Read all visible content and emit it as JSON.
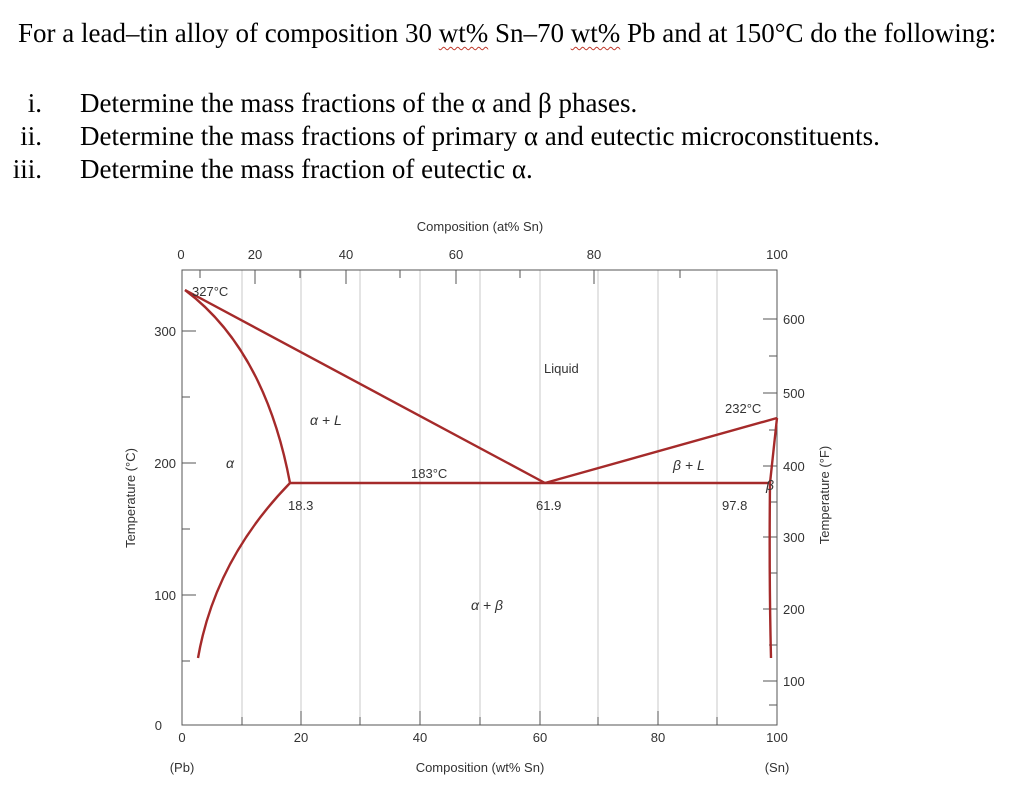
{
  "question": {
    "title_parts": [
      {
        "text": "For a lead–tin alloy of composition 30 ",
        "wavy": false
      },
      {
        "text": "wt%",
        "wavy": true
      },
      {
        "text": " Sn–70 ",
        "wavy": false
      },
      {
        "text": "wt%",
        "wavy": true
      },
      {
        "text": " Pb and at 150°C do the following:",
        "wavy": false
      }
    ],
    "items": [
      {
        "num": "i.",
        "text": "Determine the mass fractions of the α and β phases."
      },
      {
        "num": "ii.",
        "text": "Determine the mass fractions of primary α and eutectic microconstituents."
      },
      {
        "num": "iii.",
        "text": "Determine the mass fraction of eutectic α."
      }
    ]
  },
  "diagram": {
    "top_axis_label": "Composition (at% Sn)",
    "bottom_axis_label": "Composition (wt% Sn)",
    "left_axis_label": "Temperature (°C)",
    "right_axis_label": "Temperature (°F)",
    "pb_label": "(Pb)",
    "sn_label": "(Sn)",
    "top_ticks": [
      "0",
      "20",
      "40",
      "60",
      "80",
      "100"
    ],
    "bottom_ticks": [
      "0",
      "20",
      "40",
      "60",
      "80",
      "100"
    ],
    "left_ticks": [
      "0",
      "100",
      "200",
      "300"
    ],
    "right_ticks": [
      "100",
      "200",
      "300",
      "400",
      "500",
      "600"
    ],
    "annotations": {
      "pb_melt": "327°C",
      "sn_melt": "232°C",
      "eutectic_temp": "183°C",
      "alpha_limit": "18.3",
      "eutectic_comp": "61.9",
      "beta_limit": "97.8",
      "liquid": "Liquid",
      "alpha_plus_L": "α + L",
      "beta_plus_L": "β + L",
      "alpha": "α",
      "beta": "β",
      "alpha_plus_beta": "α + β"
    },
    "colors": {
      "phase_lines": "#a52a2a",
      "grid": "#c8c8c8",
      "frame": "#555555"
    }
  }
}
